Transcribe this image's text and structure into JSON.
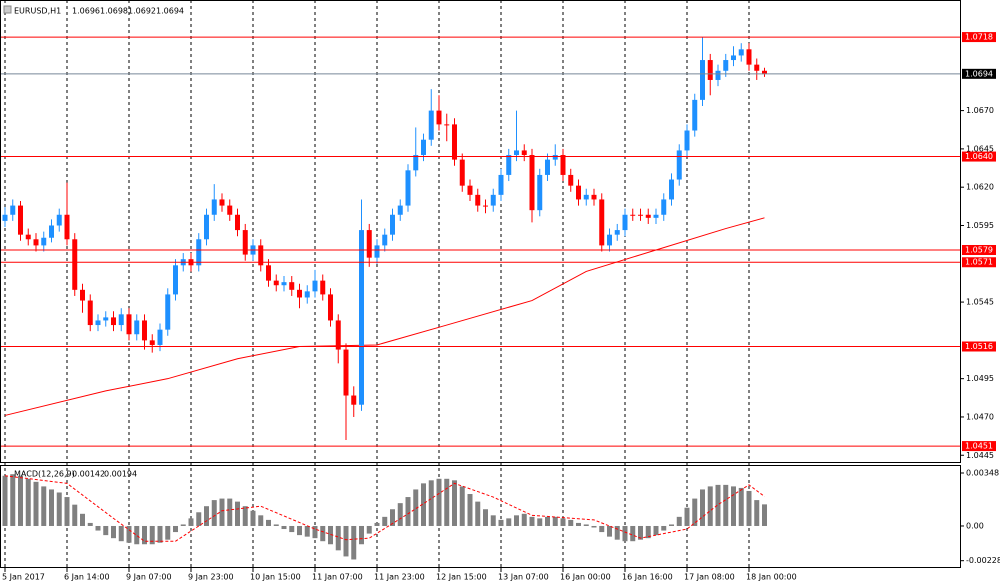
{
  "chart_data": [
    {
      "type": "candlestick",
      "symbol": "EURUSD,H1",
      "categories": [
        "5 Jan 2017",
        null,
        null,
        null,
        null,
        null,
        null,
        null,
        "6 Jan 14:00",
        null,
        null,
        null,
        null,
        null,
        null,
        null,
        "9 Jan 07:00",
        null,
        null,
        null,
        null,
        null,
        null,
        null,
        "9 Jan 23:00",
        null,
        null,
        null,
        null,
        null,
        null,
        null,
        "10 Jan 15:00",
        null,
        null,
        null,
        null,
        null,
        null,
        null,
        "11 Jan 07:00",
        null,
        null,
        null,
        null,
        null,
        null,
        null,
        "11 Jan 23:00",
        null,
        null,
        null,
        null,
        null,
        null,
        null,
        "12 Jan 15:00",
        null,
        null,
        null,
        null,
        null,
        null,
        null,
        "13 Jan 07:00",
        null,
        null,
        null,
        null,
        null,
        null,
        null,
        "16 Jan 00:00",
        null,
        null,
        null,
        null,
        null,
        null,
        null,
        "16 Jan 16:00",
        null,
        null,
        null,
        null,
        null,
        null,
        null,
        "17 Jan 08:00",
        null,
        null,
        null,
        null,
        null,
        null,
        null,
        "18 Jan 00:00",
        null,
        null
      ],
      "open": [
        1.0598,
        1.0602,
        1.0608,
        1.0589,
        1.0586,
        1.0582,
        1.0587,
        1.0595,
        1.0602,
        1.0586,
        1.0553,
        1.0546,
        1.053,
        1.0533,
        1.0535,
        1.053,
        1.0537,
        1.0524,
        1.0533,
        1.052,
        1.0517,
        1.0527,
        1.055,
        1.0569,
        1.0573,
        1.0569,
        1.0586,
        1.0602,
        1.0612,
        1.0608,
        1.0602,
        1.0592,
        1.0576,
        1.0582,
        1.0569,
        1.0559,
        1.0556,
        1.0558,
        1.0553,
        1.0548,
        1.0552,
        1.0559,
        1.055,
        1.0533,
        1.0514,
        1.0484,
        1.0478,
        1.0592,
        1.0574,
        1.0582,
        1.0589,
        1.0602,
        1.0608,
        1.0631,
        1.0641,
        1.0651,
        1.067,
        1.0661,
        1.0661,
        1.0638,
        1.0621,
        1.0615,
        1.0608,
        1.0608,
        1.0615,
        1.0628,
        1.0641,
        1.0644,
        1.0641,
        1.0605,
        1.0628,
        1.0638,
        1.0641,
        1.0628,
        1.0621,
        1.0612,
        1.0615,
        1.0612,
        1.0582,
        1.0589,
        1.0592,
        1.0602,
        1.0602,
        1.0602,
        1.06,
        1.0602,
        1.0612,
        1.0625,
        1.0644,
        1.0657,
        1.0677,
        1.0703,
        1.069,
        1.0696,
        1.0703,
        1.0706,
        1.071,
        1.07,
        1.0696
      ],
      "high": [
        1.0607,
        1.0612,
        1.0611,
        1.0593,
        1.059,
        1.0591,
        1.0599,
        1.0606,
        1.0623,
        1.059,
        1.0557,
        1.055,
        1.0537,
        1.0539,
        1.0539,
        1.0541,
        1.0541,
        1.0537,
        1.0537,
        1.0524,
        1.0531,
        1.0554,
        1.0573,
        1.0577,
        1.0577,
        1.059,
        1.0606,
        1.0622,
        1.0616,
        1.0612,
        1.0606,
        1.0596,
        1.0586,
        1.0586,
        1.0573,
        1.0563,
        1.0562,
        1.0562,
        1.0557,
        1.0556,
        1.0566,
        1.0563,
        1.0554,
        1.0537,
        1.0518,
        1.049,
        1.0612,
        1.0596,
        1.0586,
        1.0593,
        1.0606,
        1.0612,
        1.0635,
        1.0659,
        1.0655,
        1.0684,
        1.068,
        1.0668,
        1.0665,
        1.0642,
        1.0625,
        1.0619,
        1.0612,
        1.0619,
        1.0632,
        1.0645,
        1.067,
        1.0648,
        1.0645,
        1.0632,
        1.0642,
        1.0648,
        1.0645,
        1.0632,
        1.0625,
        1.0619,
        1.0619,
        1.0616,
        1.0593,
        1.0596,
        1.0606,
        1.0606,
        1.0606,
        1.0606,
        1.0606,
        1.0616,
        1.0629,
        1.0648,
        1.0661,
        1.0681,
        1.0718,
        1.0707,
        1.07,
        1.0707,
        1.0712,
        1.0714,
        1.0714,
        1.0704,
        1.0698
      ],
      "low": [
        1.0594,
        1.0598,
        1.0585,
        1.0582,
        1.0578,
        1.0578,
        1.0584,
        1.0591,
        1.0582,
        1.0549,
        1.0538,
        1.0526,
        1.0526,
        1.0529,
        1.0526,
        1.0526,
        1.052,
        1.052,
        1.0514,
        1.0512,
        1.0513,
        1.0523,
        1.0546,
        1.0565,
        1.0565,
        1.0565,
        1.0582,
        1.0598,
        1.0604,
        1.0598,
        1.0588,
        1.0572,
        1.0572,
        1.0565,
        1.0555,
        1.0552,
        1.0552,
        1.0549,
        1.0541,
        1.0544,
        1.0548,
        1.0546,
        1.0529,
        1.0505,
        1.0455,
        1.047,
        1.0474,
        1.0568,
        1.057,
        1.0578,
        1.0585,
        1.0598,
        1.0604,
        1.0627,
        1.0637,
        1.0647,
        1.0657,
        1.065,
        1.0634,
        1.0617,
        1.0611,
        1.0604,
        1.0603,
        1.0604,
        1.0611,
        1.0624,
        1.0637,
        1.0637,
        1.0597,
        1.0601,
        1.0624,
        1.0634,
        1.0624,
        1.0617,
        1.0608,
        1.0608,
        1.0608,
        1.0578,
        1.0578,
        1.0585,
        1.0588,
        1.0598,
        1.0598,
        1.0596,
        1.0596,
        1.0598,
        1.0608,
        1.0621,
        1.064,
        1.0653,
        1.0673,
        1.068,
        1.0686,
        1.0692,
        1.0699,
        1.0702,
        1.0696,
        1.069,
        1.0692
      ],
      "close": [
        1.0602,
        1.0608,
        1.0589,
        1.0586,
        1.0582,
        1.0587,
        1.0595,
        1.0602,
        1.0586,
        1.0553,
        1.0546,
        1.053,
        1.0533,
        1.0535,
        1.053,
        1.0537,
        1.0524,
        1.0533,
        1.052,
        1.0517,
        1.0527,
        1.055,
        1.0569,
        1.0573,
        1.0569,
        1.0586,
        1.0602,
        1.0612,
        1.0608,
        1.0602,
        1.0592,
        1.0576,
        1.0582,
        1.0569,
        1.0559,
        1.0556,
        1.0558,
        1.0553,
        1.0548,
        1.0552,
        1.0559,
        1.055,
        1.0533,
        1.0514,
        1.0484,
        1.0478,
        1.0592,
        1.0574,
        1.0582,
        1.0589,
        1.0602,
        1.0608,
        1.0631,
        1.0641,
        1.0651,
        1.067,
        1.0661,
        1.0661,
        1.0638,
        1.0621,
        1.0615,
        1.0608,
        1.0608,
        1.0615,
        1.0628,
        1.0641,
        1.0644,
        1.0641,
        1.0605,
        1.0628,
        1.0638,
        1.0641,
        1.0628,
        1.0621,
        1.0612,
        1.0615,
        1.0612,
        1.0582,
        1.0589,
        1.0592,
        1.0602,
        1.0602,
        1.0602,
        1.06,
        1.0602,
        1.0612,
        1.0625,
        1.0644,
        1.0657,
        1.0677,
        1.0703,
        1.069,
        1.0696,
        1.0703,
        1.0706,
        1.071,
        1.07,
        1.0696,
        1.0694
      ],
      "bull_color": "#1e90ff",
      "bear_color": "#ff0000",
      "ma": {
        "color": "#ff0000",
        "x": [
          0,
          13,
          21,
          30,
          38,
          48,
          57,
          68,
          75,
          84,
          93,
          98
        ],
        "values": [
          1.0471,
          1.0487,
          1.0495,
          1.0508,
          1.0516,
          1.0517,
          1.053,
          1.0546,
          1.0565,
          1.0579,
          1.0593,
          1.06
        ]
      },
      "levels": {
        "color": "#ff0000",
        "values": [
          1.0718,
          1.064,
          1.0579,
          1.0571,
          1.0516,
          1.0451
        ],
        "value_labels": [
          "1.0718",
          "1.0640",
          "1.0579",
          "1.0571",
          "1.0516",
          "1.0451"
        ]
      },
      "ylim": [
        1.04406,
        1.07422
      ],
      "yticks": [
        {
          "value": 1.067,
          "label": "1.0670"
        },
        1.0645,
        {
          "value": 1.062,
          "label": "1.0620"
        },
        1.0595,
        1.0545,
        1.0495,
        {
          "value": 1.047,
          "label": "1.0470"
        },
        1.0445
      ],
      "grid": true
    },
    {
      "type": "macd",
      "label": "MACD(12,26,9)",
      "histogram": {
        "color": "#808080",
        "values": [
          0.0033,
          0.0034,
          0.0033,
          0.0031,
          0.0029,
          0.0026,
          0.0024,
          0.0022,
          0.0019,
          0.0014,
          0.0008,
          0.0002,
          -0.0003,
          -0.0006,
          -0.0008,
          -0.001,
          -0.0011,
          -0.0012,
          -0.0012,
          -0.0012,
          -0.0011,
          -0.0009,
          -0.0004,
          0.0001,
          0.0005,
          0.0009,
          0.0013,
          0.0017,
          0.0018,
          0.0018,
          0.0016,
          0.0013,
          0.001,
          0.0007,
          0.0004,
          0.0001,
          -0.0002,
          -0.0004,
          -0.0006,
          -0.0007,
          -0.0008,
          -0.001,
          -0.0012,
          -0.0016,
          -0.002,
          -0.0022,
          -0.0012,
          -0.0005,
          0.0002,
          0.0006,
          0.0011,
          0.0015,
          0.0019,
          0.0024,
          0.0028,
          0.003,
          0.0031,
          0.0031,
          0.003,
          0.0026,
          0.0021,
          0.0016,
          0.0011,
          0.0007,
          0.0004,
          0.0005,
          0.0007,
          0.0008,
          0.0006,
          0.0005,
          0.0006,
          0.0006,
          0.0005,
          0.0004,
          0.0002,
          0.0001,
          -0.0001,
          -0.0004,
          -0.0007,
          -0.0009,
          -0.001,
          -0.001,
          -0.0009,
          -0.0008,
          -0.0006,
          -0.0003,
          0.0001,
          0.0006,
          0.0012,
          0.0018,
          0.0024,
          0.0026,
          0.0027,
          0.0027,
          0.0026,
          0.0025,
          0.0023,
          0.0017,
          0.00142
        ]
      },
      "signal": {
        "color": "#ff0000",
        "x": [
          0,
          8,
          14,
          18,
          22,
          28,
          33,
          40,
          44,
          47,
          52,
          58,
          63,
          68,
          76,
          82,
          88,
          92,
          96,
          98
        ],
        "values": [
          0.0033,
          0.0028,
          0.0005,
          -0.001,
          -0.001,
          0.001,
          0.0013,
          -0.0002,
          -0.0009,
          -0.0008,
          0.0008,
          0.0028,
          0.0019,
          0.0007,
          0.0004,
          -0.0008,
          -0.0002,
          0.0014,
          0.0027,
          0.00194
        ]
      },
      "ylim": [
        -0.00276,
        0.00394
      ],
      "yticks": [
        0.00348,
        {
          "value": 0,
          "label": "0.00"
        },
        -0.00228
      ]
    }
  ]
}
